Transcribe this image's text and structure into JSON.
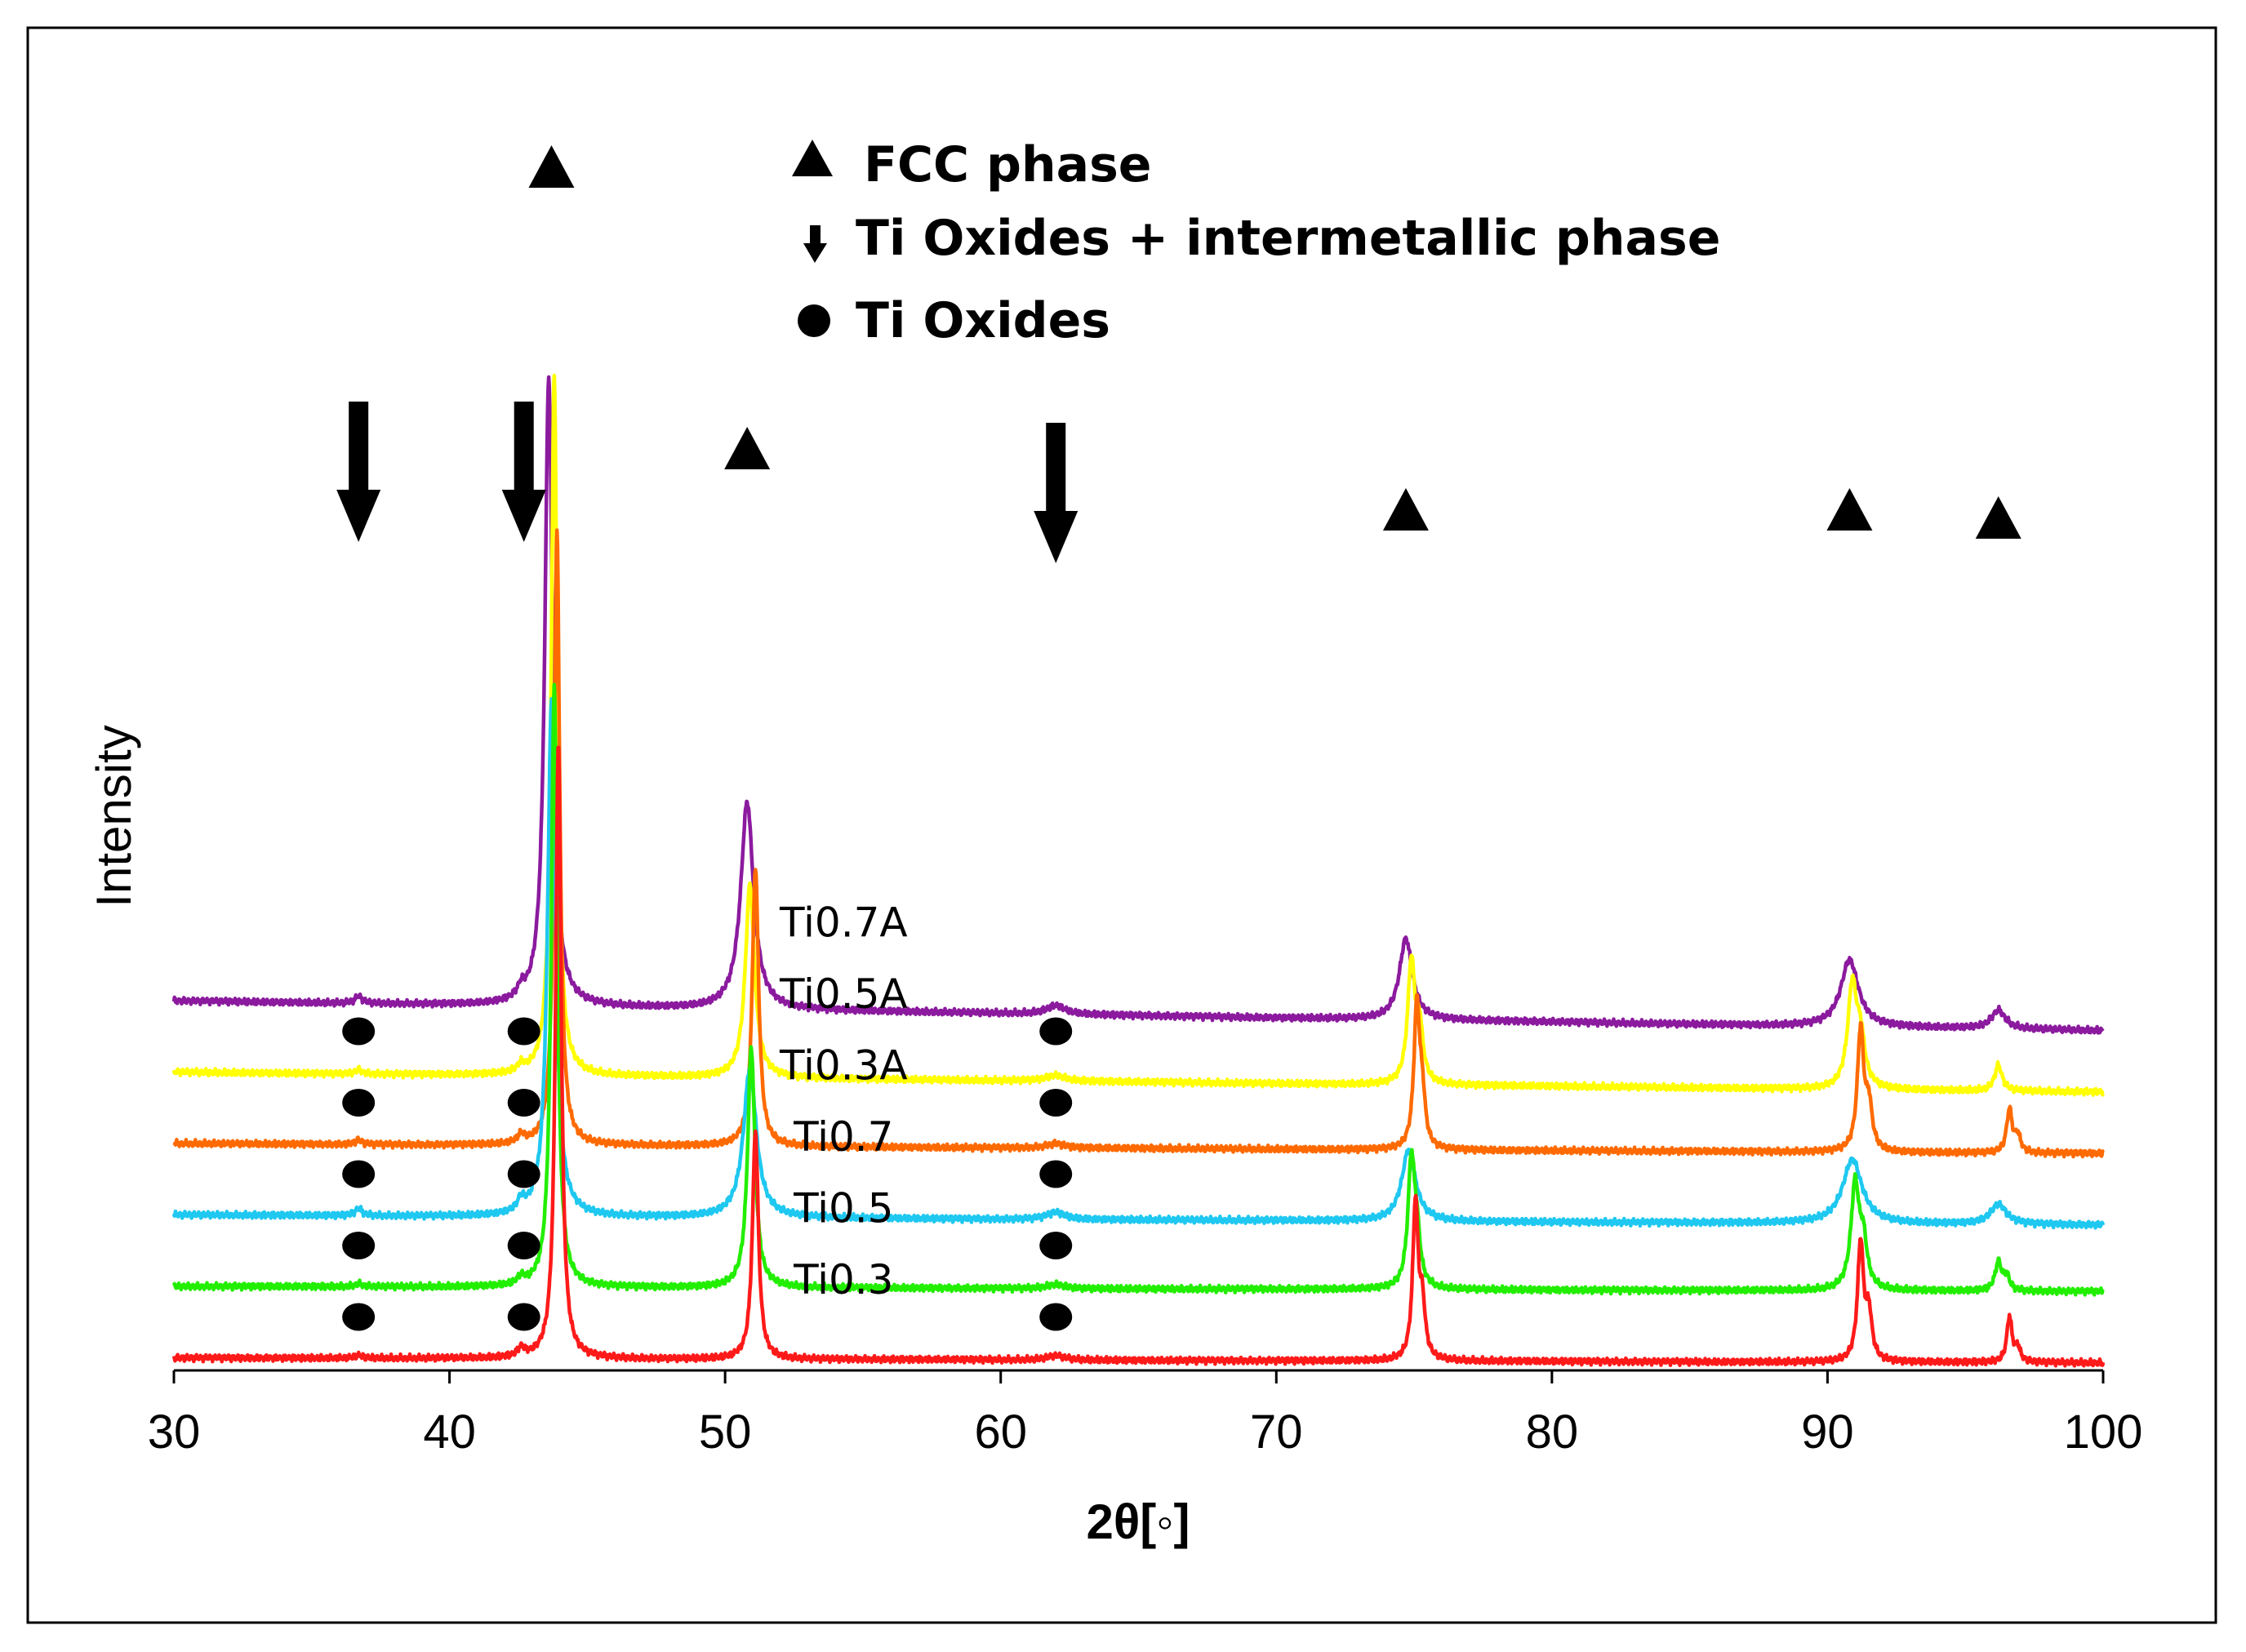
{
  "chart_data": {
    "type": "line",
    "xlabel": "2θ[◦]",
    "ylabel": "Intensity",
    "xlim": [
      30,
      100
    ],
    "xticks": [
      30,
      40,
      50,
      60,
      70,
      80,
      90,
      100
    ],
    "yticks_shown": false,
    "grid": false,
    "legend_position": "top-center",
    "legend": [
      {
        "marker": "triangle",
        "label": "FCC phase"
      },
      {
        "marker": "arrow",
        "label": "Ti Oxides + intermetallic phase"
      },
      {
        "marker": "circle",
        "label": "Ti Oxides"
      }
    ],
    "peak_positions": {
      "fcc_triangles": [
        43.7,
        50.8,
        74.7,
        90.8,
        96.2
      ],
      "arrows": [
        36.7,
        42.7,
        62.0
      ],
      "oxide_circles": [
        36.7,
        42.7,
        62.0
      ]
    },
    "series": [
      {
        "name": "Ti0.7A",
        "color": "#8b1a9e",
        "baseline": 2.08,
        "slope": -0.003,
        "peaks": [
          {
            "x": 36.7,
            "h": 0.05,
            "w": 0.15
          },
          {
            "x": 42.6,
            "h": 0.07,
            "w": 0.15
          },
          {
            "x": 43.6,
            "h": 4.4,
            "w": 0.17
          },
          {
            "x": 50.8,
            "h": 1.45,
            "w": 0.28
          },
          {
            "x": 62.0,
            "h": 0.06,
            "w": 0.4
          },
          {
            "x": 74.7,
            "h": 0.57,
            "w": 0.28
          },
          {
            "x": 90.8,
            "h": 0.47,
            "w": 0.38
          },
          {
            "x": 96.2,
            "h": 0.13,
            "w": 0.3
          }
        ]
      },
      {
        "name": "Ti0.5A",
        "color": "#ffff00",
        "baseline": 1.58,
        "slope": -0.002,
        "peaks": [
          {
            "x": 36.7,
            "h": 0.03,
            "w": 0.15
          },
          {
            "x": 42.6,
            "h": 0.05,
            "w": 0.15
          },
          {
            "x": 43.8,
            "h": 4.9,
            "w": 0.13
          },
          {
            "x": 50.9,
            "h": 1.35,
            "w": 0.2
          },
          {
            "x": 62.0,
            "h": 0.04,
            "w": 0.4
          },
          {
            "x": 74.9,
            "h": 0.85,
            "w": 0.16
          },
          {
            "x": 75.2,
            "h": 0.35,
            "w": 0.14
          },
          {
            "x": 90.9,
            "h": 0.71,
            "w": 0.2
          },
          {
            "x": 91.2,
            "h": 0.3,
            "w": 0.18
          },
          {
            "x": 96.2,
            "h": 0.18,
            "w": 0.16
          }
        ]
      },
      {
        "name": "Ti0.3A",
        "color": "#ff6a00",
        "baseline": 1.08,
        "slope": -0.001,
        "peaks": [
          {
            "x": 36.7,
            "h": 0.03,
            "w": 0.15
          },
          {
            "x": 42.6,
            "h": 0.06,
            "w": 0.15
          },
          {
            "x": 43.9,
            "h": 4.3,
            "w": 0.12
          },
          {
            "x": 51.1,
            "h": 1.95,
            "w": 0.14
          },
          {
            "x": 62.0,
            "h": 0.03,
            "w": 0.4
          },
          {
            "x": 75.1,
            "h": 1.0,
            "w": 0.13
          },
          {
            "x": 75.3,
            "h": 0.3,
            "w": 0.12
          },
          {
            "x": 91.2,
            "h": 0.85,
            "w": 0.14
          },
          {
            "x": 91.5,
            "h": 0.3,
            "w": 0.14
          },
          {
            "x": 96.6,
            "h": 0.3,
            "w": 0.12
          },
          {
            "x": 96.9,
            "h": 0.12,
            "w": 0.12
          }
        ]
      },
      {
        "name": "Ti0.7",
        "color": "#1ec8f0",
        "baseline": 0.58,
        "slope": -0.001,
        "peaks": [
          {
            "x": 36.7,
            "h": 0.05,
            "w": 0.15
          },
          {
            "x": 42.6,
            "h": 0.08,
            "w": 0.15
          },
          {
            "x": 43.7,
            "h": 3.6,
            "w": 0.17
          },
          {
            "x": 50.9,
            "h": 1.05,
            "w": 0.28
          },
          {
            "x": 62.0,
            "h": 0.05,
            "w": 0.4
          },
          {
            "x": 74.8,
            "h": 0.5,
            "w": 0.3
          },
          {
            "x": 90.9,
            "h": 0.45,
            "w": 0.42
          },
          {
            "x": 96.2,
            "h": 0.14,
            "w": 0.35
          }
        ]
      },
      {
        "name": "Ti0.5",
        "color": "#22ee00",
        "baseline": 0.08,
        "slope": -0.0005,
        "peaks": [
          {
            "x": 36.7,
            "h": 0.02,
            "w": 0.15
          },
          {
            "x": 42.6,
            "h": 0.05,
            "w": 0.15
          },
          {
            "x": 43.8,
            "h": 4.2,
            "w": 0.13
          },
          {
            "x": 50.95,
            "h": 1.68,
            "w": 0.16
          },
          {
            "x": 62.0,
            "h": 0.03,
            "w": 0.4
          },
          {
            "x": 74.9,
            "h": 0.88,
            "w": 0.15
          },
          {
            "x": 75.1,
            "h": 0.3,
            "w": 0.14
          },
          {
            "x": 91.0,
            "h": 0.73,
            "w": 0.18
          },
          {
            "x": 91.3,
            "h": 0.3,
            "w": 0.16
          },
          {
            "x": 96.2,
            "h": 0.2,
            "w": 0.14
          },
          {
            "x": 96.5,
            "h": 0.1,
            "w": 0.12
          }
        ]
      },
      {
        "name": "Ti0.3",
        "color": "#ff1a1a",
        "baseline": -0.42,
        "slope": -0.0005,
        "peaks": [
          {
            "x": 36.7,
            "h": 0.02,
            "w": 0.15
          },
          {
            "x": 42.6,
            "h": 0.06,
            "w": 0.15
          },
          {
            "x": 43.95,
            "h": 4.3,
            "w": 0.12
          },
          {
            "x": 51.1,
            "h": 1.6,
            "w": 0.13
          },
          {
            "x": 62.0,
            "h": 0.03,
            "w": 0.4
          },
          {
            "x": 75.05,
            "h": 1.1,
            "w": 0.12
          },
          {
            "x": 75.3,
            "h": 0.35,
            "w": 0.12
          },
          {
            "x": 91.2,
            "h": 0.83,
            "w": 0.13
          },
          {
            "x": 91.5,
            "h": 0.32,
            "w": 0.13
          },
          {
            "x": 96.6,
            "h": 0.32,
            "w": 0.11
          },
          {
            "x": 96.9,
            "h": 0.1,
            "w": 0.11
          }
        ]
      }
    ]
  }
}
